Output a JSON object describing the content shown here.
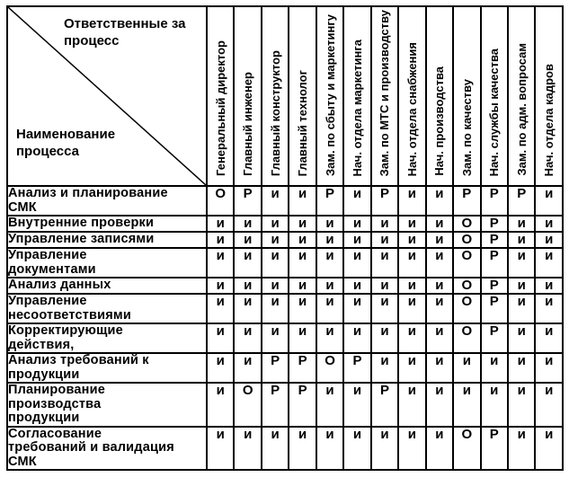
{
  "matrix": {
    "corner": {
      "top_label": "Ответственные за процесс",
      "bottom_label": "Наименование процесса"
    },
    "columns": [
      "Генеральный директор",
      "Главный инженер",
      "Главный конструктор",
      "Главный технолог",
      "Зам. по сбыту и маркетингу",
      "Нач. отдела маркетинга",
      "Зам. по МТС и производству",
      "Нач. отдела снабжения",
      "Нач. производства",
      "Зам. по качеству",
      "Нач. службы качества",
      "Зам. по адм. вопросам",
      "Нач. отдела кадров"
    ],
    "rows": [
      {
        "name": "Анализ и планирование СМК",
        "cells": [
          "О",
          "Р",
          "и",
          "и",
          "Р",
          "и",
          "Р",
          "и",
          "и",
          "Р",
          "Р",
          "Р",
          "и"
        ]
      },
      {
        "name": "Внутренние проверки",
        "cells": [
          "и",
          "и",
          "и",
          "и",
          "и",
          "и",
          "и",
          "и",
          "и",
          "О",
          "Р",
          "и",
          "и"
        ]
      },
      {
        "name": "Управление записями",
        "cells": [
          "и",
          "и",
          "и",
          "и",
          "и",
          "и",
          "и",
          "и",
          "и",
          "О",
          "Р",
          "и",
          "и"
        ]
      },
      {
        "name": "Управление документами",
        "cells": [
          "и",
          "и",
          "и",
          "и",
          "и",
          "и",
          "и",
          "и",
          "и",
          "О",
          "Р",
          "и",
          "и"
        ]
      },
      {
        "name": "Анализ данных",
        "cells": [
          "и",
          "и",
          "и",
          "и",
          "и",
          "и",
          "и",
          "и",
          "и",
          "О",
          "Р",
          "и",
          "и"
        ]
      },
      {
        "name": "Управление несоответствиями",
        "cells": [
          "и",
          "и",
          "и",
          "и",
          "и",
          "и",
          "и",
          "и",
          "и",
          "О",
          "Р",
          "и",
          "и"
        ]
      },
      {
        "name": "Корректирующие действия,",
        "cells": [
          "и",
          "и",
          "и",
          "и",
          "и",
          "и",
          "и",
          "и",
          "и",
          "О",
          "Р",
          "и",
          "и"
        ]
      },
      {
        "name": "Анализ требований к продукции",
        "cells": [
          "и",
          "и",
          "Р",
          "Р",
          "О",
          "Р",
          "и",
          "и",
          "и",
          "и",
          "и",
          "и",
          "и"
        ]
      },
      {
        "name": "Планирование производства продукции",
        "cells": [
          "и",
          "О",
          "Р",
          "Р",
          "и",
          "и",
          "Р",
          "и",
          "и",
          "и",
          "и",
          "и",
          "и"
        ]
      },
      {
        "name": "Согласование требований и валидация СМК",
        "cells": [
          "и",
          "и",
          "и",
          "и",
          "и",
          "и",
          "и",
          "и",
          "и",
          "О",
          "Р",
          "и",
          "и"
        ]
      }
    ],
    "colors": {
      "border": "#000000",
      "background": "#ffffff",
      "text": "#000000"
    }
  }
}
